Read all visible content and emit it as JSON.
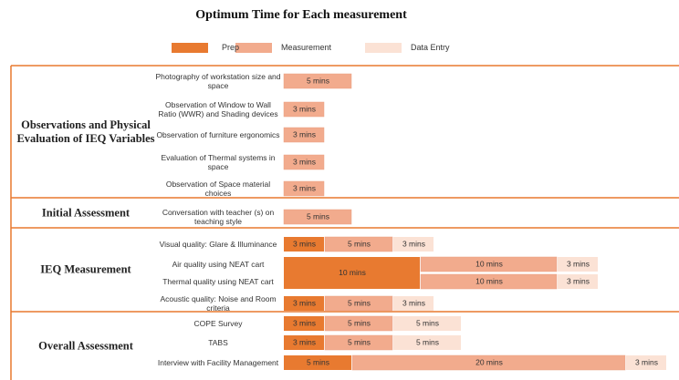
{
  "chart_data": {
    "type": "bar",
    "orientation": "horizontal",
    "stacked": true,
    "title": "Optimum Time for Each measurement",
    "groups": [
      {
        "name": "Observations and Physical Evaluation of IEQ Variables",
        "categories": [
          "Photography of workstation size and space",
          "Observation of Window to Wall Ratio (WWR) and Shading devices",
          "Observation of furniture ergonomics",
          "Evaluation of Thermal systems in space",
          "Observation of Space material choices"
        ]
      },
      {
        "name": "Initial Assessment",
        "categories": [
          "Conversation with teacher (s) on teaching style"
        ]
      },
      {
        "name": "IEQ Measurement",
        "categories": [
          "Visual quality: Glare & Illuminance",
          "Air quality using NEAT cart",
          "Thermal quality using NEAT cart",
          "Acoustic quality: Noise and Room criteria"
        ]
      },
      {
        "name": "Overall Assessment",
        "categories": [
          "COPE Survey",
          "TABS",
          "Interview with Facility Management"
        ]
      }
    ],
    "series": [
      {
        "name": "Prep",
        "color": "#e87a30",
        "values": [
          null,
          null,
          null,
          null,
          null,
          null,
          3,
          10,
          null,
          3,
          3,
          3,
          5
        ],
        "value_labels": [
          null,
          null,
          null,
          null,
          null,
          null,
          "3 mins",
          "10 mins",
          null,
          "3 mins",
          "3 mins",
          "3 mins",
          "5 mins"
        ]
      },
      {
        "name": "Measurement",
        "color": "#f2ab8d",
        "values": [
          5,
          3,
          3,
          3,
          3,
          5,
          5,
          10,
          10,
          5,
          5,
          5,
          20
        ],
        "value_labels": [
          "5 mins",
          "3 mins",
          "3 mins",
          "3 mins",
          "3 mins",
          "5 mins",
          "5 mins",
          "10 mins",
          "10 mins",
          "5 mins",
          "5 mins",
          "5 mins",
          "20 mins"
        ]
      },
      {
        "name": "Data Entry",
        "color": "#fbe2d5",
        "values": [
          null,
          null,
          null,
          null,
          null,
          null,
          3,
          3,
          3,
          3,
          5,
          5,
          3
        ],
        "value_labels": [
          null,
          null,
          null,
          null,
          null,
          null,
          "3 mins",
          "3 mins",
          "3 mins",
          "3 mins",
          "5 mins",
          "5 mins",
          "3 mins"
        ]
      }
    ]
  }
}
